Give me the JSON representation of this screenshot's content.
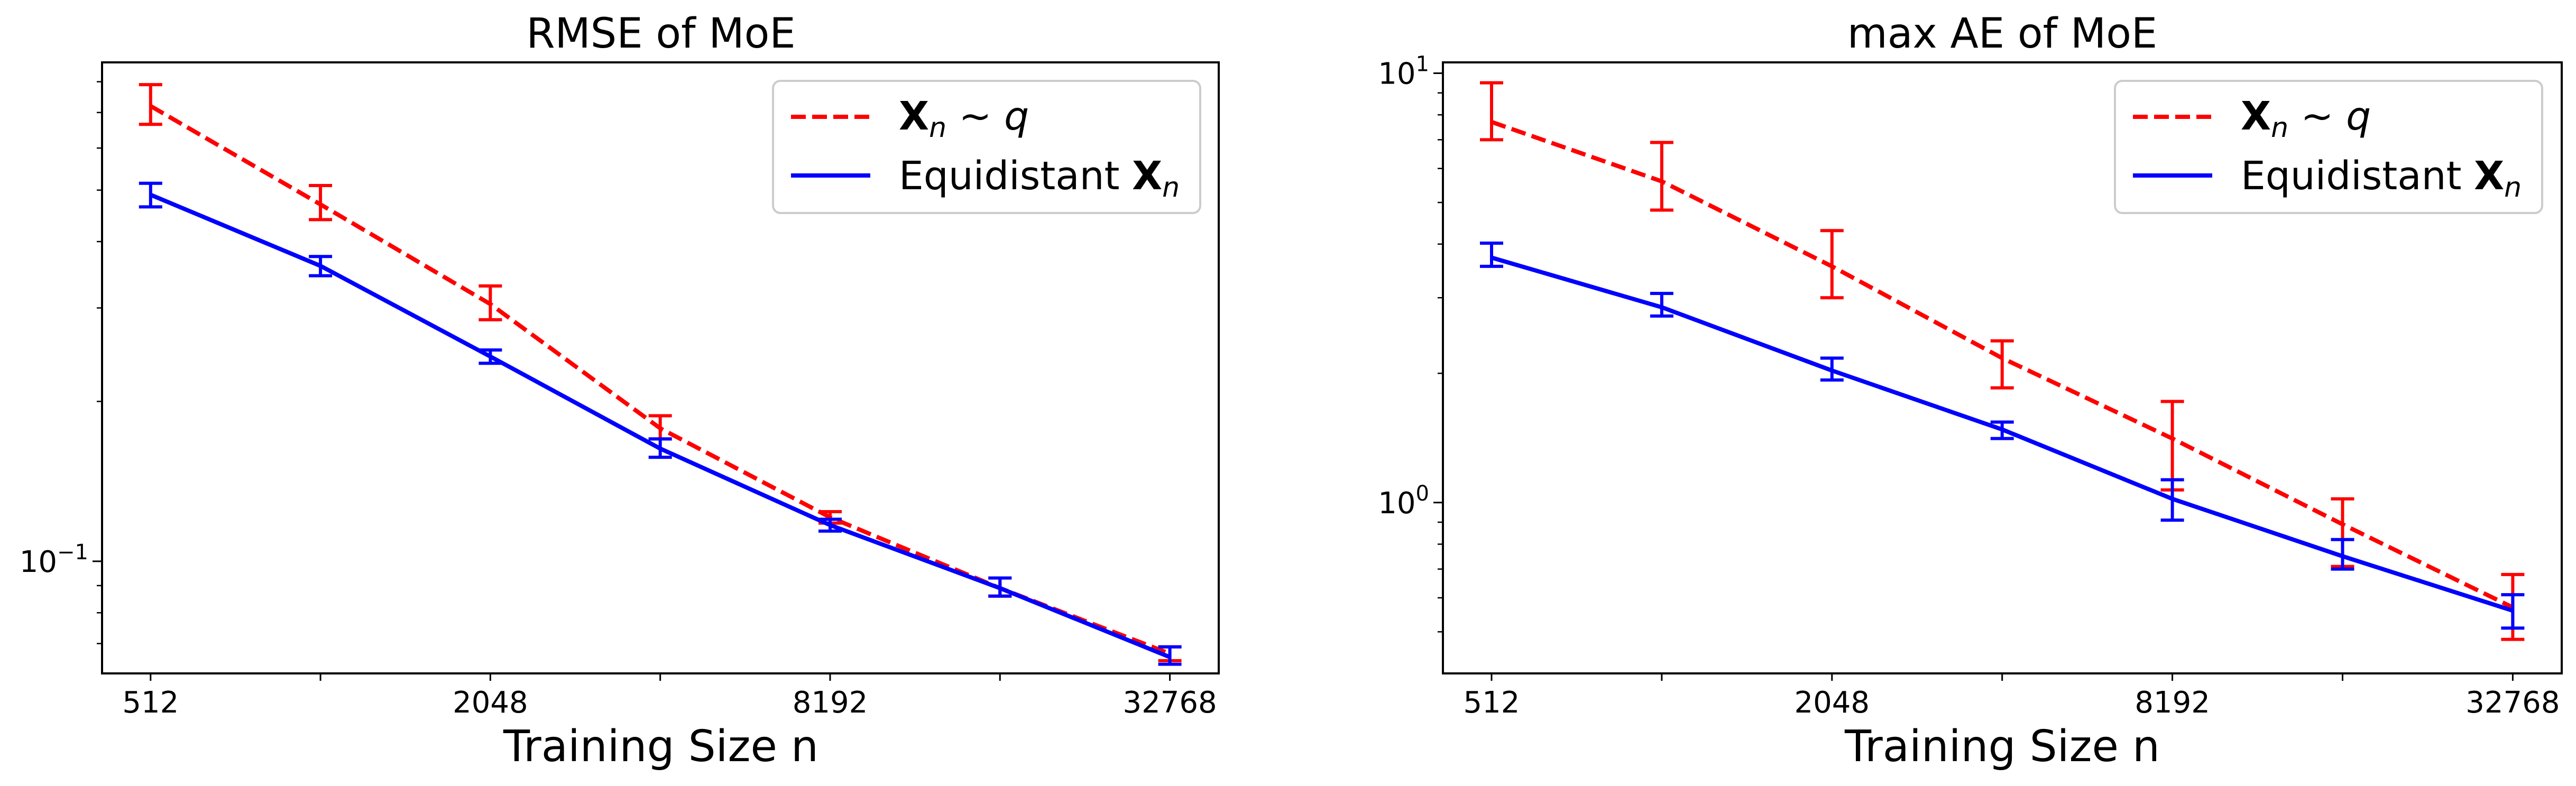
{
  "figure": {
    "background": "#ffffff"
  },
  "chart_data": [
    {
      "type": "line",
      "title": "RMSE of MoE",
      "xlabel": "Training Size n",
      "ylabel": "",
      "xscale": "log2",
      "yscale": "log",
      "xlim": [
        420,
        40000
      ],
      "ylim": [
        0.0615,
        0.87
      ],
      "x_ticks": [
        512,
        1024,
        2048,
        4096,
        8192,
        16384,
        32768
      ],
      "x_tick_labels": [
        {
          "value": 512,
          "label": "512"
        },
        {
          "value": 2048,
          "label": "2048"
        },
        {
          "value": 8192,
          "label": "8192"
        },
        {
          "value": 32768,
          "label": "32768"
        }
      ],
      "y_tick_labels": [
        {
          "value": 0.1,
          "base": "10",
          "exp": "−1"
        }
      ],
      "y_minor_ticks": [
        0.07,
        0.08,
        0.09,
        0.2,
        0.3,
        0.4,
        0.5,
        0.6,
        0.7,
        0.8
      ],
      "grid": false,
      "legend": {
        "position": "top-right",
        "entries": [
          {
            "series": 0,
            "bold": "X",
            "sub": "n",
            "rest": " ∼ ",
            "ital": "q"
          },
          {
            "series": 1,
            "pre": "Equidistant ",
            "bold": "X",
            "sub": "n"
          }
        ]
      },
      "series": [
        {
          "style": "dashed",
          "color": "#ff0000",
          "x": [
            512,
            1024,
            2048,
            4096,
            8192,
            16384,
            32768
          ],
          "y": [
            0.72,
            0.47,
            0.305,
            0.178,
            0.121,
            0.089,
            0.067
          ],
          "err_low": [
            0.665,
            0.44,
            0.285,
            0.17,
            0.118,
            0.086,
            0.065
          ],
          "err_high": [
            0.79,
            0.51,
            0.33,
            0.188,
            0.124,
            0.093,
            0.069
          ]
        },
        {
          "style": "solid",
          "color": "#0000ff",
          "x": [
            512,
            1024,
            2048,
            4096,
            8192,
            16384,
            32768
          ],
          "y": [
            0.49,
            0.36,
            0.243,
            0.163,
            0.117,
            0.089,
            0.066
          ],
          "err_low": [
            0.465,
            0.345,
            0.236,
            0.157,
            0.114,
            0.086,
            0.064
          ],
          "err_high": [
            0.515,
            0.375,
            0.25,
            0.17,
            0.12,
            0.093,
            0.069
          ]
        }
      ]
    },
    {
      "type": "line",
      "title": "max AE of MoE",
      "xlabel": "Training Size n",
      "ylabel": "",
      "xscale": "log2",
      "yscale": "log",
      "xlim": [
        420,
        40000
      ],
      "ylim": [
        0.4,
        10.6
      ],
      "x_ticks": [
        512,
        1024,
        2048,
        4096,
        8192,
        16384,
        32768
      ],
      "x_tick_labels": [
        {
          "value": 512,
          "label": "512"
        },
        {
          "value": 2048,
          "label": "2048"
        },
        {
          "value": 8192,
          "label": "8192"
        },
        {
          "value": 32768,
          "label": "32768"
        }
      ],
      "y_tick_labels": [
        {
          "value": 1,
          "base": "10",
          "exp": "0"
        },
        {
          "value": 10,
          "base": "10",
          "exp": "1"
        }
      ],
      "y_minor_ticks": [
        0.5,
        0.6,
        0.7,
        0.8,
        0.9,
        2,
        3,
        4,
        5,
        6,
        7,
        8,
        9
      ],
      "grid": false,
      "legend": {
        "position": "top-right",
        "entries": [
          {
            "series": 0,
            "bold": "X",
            "sub": "n",
            "rest": " ∼ ",
            "ital": "q"
          },
          {
            "series": 1,
            "pre": "Equidistant ",
            "bold": "X",
            "sub": "n"
          }
        ]
      },
      "series": [
        {
          "style": "dashed",
          "color": "#ff0000",
          "x": [
            512,
            1024,
            2048,
            4096,
            8192,
            16384,
            32768
          ],
          "y": [
            7.7,
            5.6,
            3.55,
            2.17,
            1.41,
            0.89,
            0.57
          ],
          "err_low": [
            7.0,
            4.8,
            3.0,
            1.85,
            1.07,
            0.71,
            0.48
          ],
          "err_high": [
            9.5,
            6.9,
            4.3,
            2.38,
            1.72,
            1.02,
            0.68
          ]
        },
        {
          "style": "solid",
          "color": "#0000ff",
          "x": [
            512,
            1024,
            2048,
            4096,
            8192,
            16384,
            32768
          ],
          "y": [
            3.72,
            2.85,
            2.03,
            1.48,
            1.02,
            0.75,
            0.56
          ],
          "err_low": [
            3.55,
            2.72,
            1.93,
            1.41,
            0.91,
            0.7,
            0.51
          ],
          "err_high": [
            4.02,
            3.07,
            2.17,
            1.54,
            1.13,
            0.82,
            0.61
          ]
        }
      ]
    }
  ]
}
